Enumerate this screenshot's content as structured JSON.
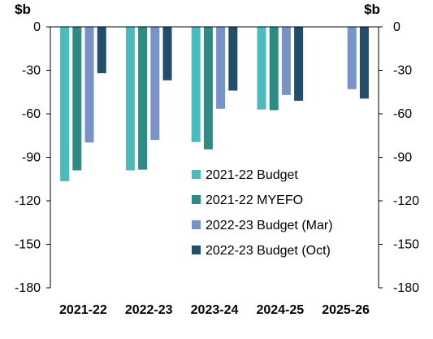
{
  "chart_data": {
    "type": "bar",
    "unit_left": "$b",
    "unit_right": "$b",
    "categories": [
      "2021-22",
      "2022-23",
      "2023-24",
      "2024-25",
      "2025-26"
    ],
    "series": [
      {
        "name": "2021-22 Budget",
        "color": "#4bbbbd",
        "values": [
          -106.5,
          -99.0,
          -79.5,
          -57.0,
          null
        ]
      },
      {
        "name": "2021-22 MYEFO",
        "color": "#2e8a85",
        "values": [
          -99.0,
          -98.5,
          -84.5,
          -57.5,
          null
        ]
      },
      {
        "name": "2022-23 Budget (Mar)",
        "color": "#7793c9",
        "values": [
          -79.8,
          -78.0,
          -56.5,
          -47.0,
          -43.0
        ]
      },
      {
        "name": "2022-23 Budget (Oct)",
        "color": "#224e6c",
        "values": [
          -32.0,
          -36.9,
          -44.0,
          -51.0,
          -49.5
        ]
      }
    ],
    "ylim": [
      -180,
      0
    ],
    "yticks": [
      0,
      -30,
      -60,
      -90,
      -120,
      -150,
      -180
    ],
    "ytick_labels": [
      "0",
      "-30",
      "-60",
      "-90",
      "-120",
      "-150",
      "-180"
    ],
    "legend_position": "bottom-right",
    "grid": false
  }
}
